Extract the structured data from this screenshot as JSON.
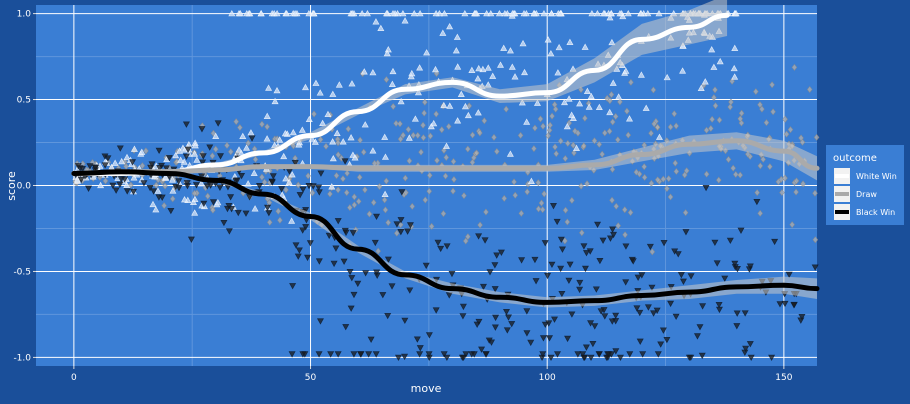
{
  "chart_data": {
    "type": "scatter",
    "title": "",
    "xlabel": "move",
    "ylabel": "score",
    "xlim": [
      -8,
      157
    ],
    "ylim": [
      -1.05,
      1.05
    ],
    "x_ticks": [
      0,
      50,
      100,
      150
    ],
    "x_tick_labels": [
      "0",
      "50",
      "100",
      "150"
    ],
    "y_ticks": [
      -1.0,
      -0.5,
      0.0,
      0.5,
      1.0
    ],
    "y_tick_labels": [
      "-1.0",
      "-0.5",
      "0.0",
      "0.5",
      "1.0"
    ],
    "grid": true,
    "legend": {
      "title": "outcome",
      "position": "right"
    },
    "series": [
      {
        "name": "White Win",
        "color": "#ffffff",
        "marker": "triangle-up",
        "smooth": [
          [
            0,
            0.07
          ],
          [
            10,
            0.07
          ],
          [
            20,
            0.08
          ],
          [
            30,
            0.12
          ],
          [
            40,
            0.19
          ],
          [
            50,
            0.29
          ],
          [
            60,
            0.43
          ],
          [
            70,
            0.56
          ],
          [
            80,
            0.6
          ],
          [
            90,
            0.52
          ],
          [
            100,
            0.54
          ],
          [
            110,
            0.67
          ],
          [
            120,
            0.85
          ],
          [
            130,
            0.92
          ],
          [
            138,
            0.99
          ]
        ],
        "ribbon_half_width": [
          0.01,
          0.01,
          0.01,
          0.01,
          0.01,
          0.02,
          0.02,
          0.03,
          0.03,
          0.04,
          0.05,
          0.07,
          0.09,
          0.1,
          0.12
        ],
        "points_x_range": [
          0,
          140
        ],
        "cap_at_one_from": 33
      },
      {
        "name": "Draw",
        "color": "#aaaaaa",
        "marker": "diamond",
        "smooth": [
          [
            0,
            0.07
          ],
          [
            10,
            0.08
          ],
          [
            20,
            0.08
          ],
          [
            30,
            0.09
          ],
          [
            40,
            0.11
          ],
          [
            50,
            0.11
          ],
          [
            60,
            0.1
          ],
          [
            70,
            0.1
          ],
          [
            80,
            0.1
          ],
          [
            90,
            0.1
          ],
          [
            100,
            0.1
          ],
          [
            110,
            0.12
          ],
          [
            120,
            0.18
          ],
          [
            130,
            0.24
          ],
          [
            140,
            0.26
          ],
          [
            150,
            0.2
          ],
          [
            157,
            0.1
          ]
        ],
        "ribbon_half_width": [
          0.01,
          0.01,
          0.01,
          0.01,
          0.01,
          0.01,
          0.02,
          0.02,
          0.02,
          0.02,
          0.02,
          0.03,
          0.04,
          0.05,
          0.05,
          0.06,
          0.07
        ],
        "points_x_range": [
          0,
          157
        ]
      },
      {
        "name": "Black Win",
        "color": "#000000",
        "marker": "triangle-down",
        "smooth": [
          [
            0,
            0.07
          ],
          [
            10,
            0.08
          ],
          [
            20,
            0.07
          ],
          [
            30,
            0.03
          ],
          [
            40,
            -0.05
          ],
          [
            50,
            -0.18
          ],
          [
            60,
            -0.37
          ],
          [
            70,
            -0.52
          ],
          [
            80,
            -0.6
          ],
          [
            90,
            -0.65
          ],
          [
            100,
            -0.68
          ],
          [
            110,
            -0.67
          ],
          [
            120,
            -0.64
          ],
          [
            130,
            -0.62
          ],
          [
            140,
            -0.59
          ],
          [
            150,
            -0.58
          ],
          [
            157,
            -0.6
          ]
        ],
        "ribbon_half_width": [
          0.01,
          0.01,
          0.01,
          0.01,
          0.01,
          0.02,
          0.02,
          0.02,
          0.03,
          0.03,
          0.03,
          0.03,
          0.03,
          0.04,
          0.04,
          0.05,
          0.06
        ],
        "points_x_range": [
          0,
          157
        ],
        "cap_at_minus_one_from": 45
      }
    ]
  },
  "colors": {
    "page_background": "#1a4f9a",
    "panel_background": "#3a7ed4",
    "grid_major": "#ffffff",
    "grid_minor": "#5f96dc",
    "legend_background": "#3a7ed4",
    "text": "#ffffff"
  }
}
